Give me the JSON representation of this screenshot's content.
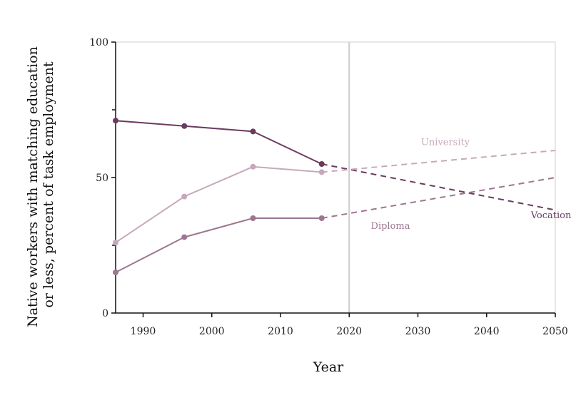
{
  "chart_data": {
    "type": "line",
    "xlabel": "Year",
    "ylabel_lines": [
      "Native workers with matching education",
      "or less, percent of task employment"
    ],
    "xlim": [
      1986,
      2050
    ],
    "ylim": [
      0,
      100
    ],
    "xticks": [
      1990,
      2000,
      2010,
      2020,
      2030,
      2040,
      2050
    ],
    "yticks": [
      0,
      50,
      100
    ],
    "reference_line_x": 2020,
    "grid": false,
    "series": [
      {
        "name": "Vocational",
        "color": "#6b3a5e",
        "observed": [
          [
            1986,
            71
          ],
          [
            1996,
            69
          ],
          [
            2006,
            67
          ],
          [
            2016,
            55
          ]
        ],
        "projected": [
          [
            2016,
            55
          ],
          [
            2050,
            38
          ]
        ],
        "label_at": [
          2050,
          35
        ]
      },
      {
        "name": "University",
        "color": "#c5a9bb",
        "observed": [
          [
            1986,
            26
          ],
          [
            1996,
            43
          ],
          [
            2006,
            54
          ],
          [
            2016,
            52
          ]
        ],
        "projected": [
          [
            2016,
            52
          ],
          [
            2050,
            60
          ]
        ],
        "label_at": [
          2034,
          62
        ]
      },
      {
        "name": "Diploma",
        "color": "#9c7790",
        "observed": [
          [
            1986,
            15
          ],
          [
            1996,
            28
          ],
          [
            2006,
            35
          ],
          [
            2016,
            35
          ]
        ],
        "projected": [
          [
            2016,
            35
          ],
          [
            2050,
            50
          ]
        ],
        "label_at": [
          2026,
          31
        ]
      }
    ]
  }
}
